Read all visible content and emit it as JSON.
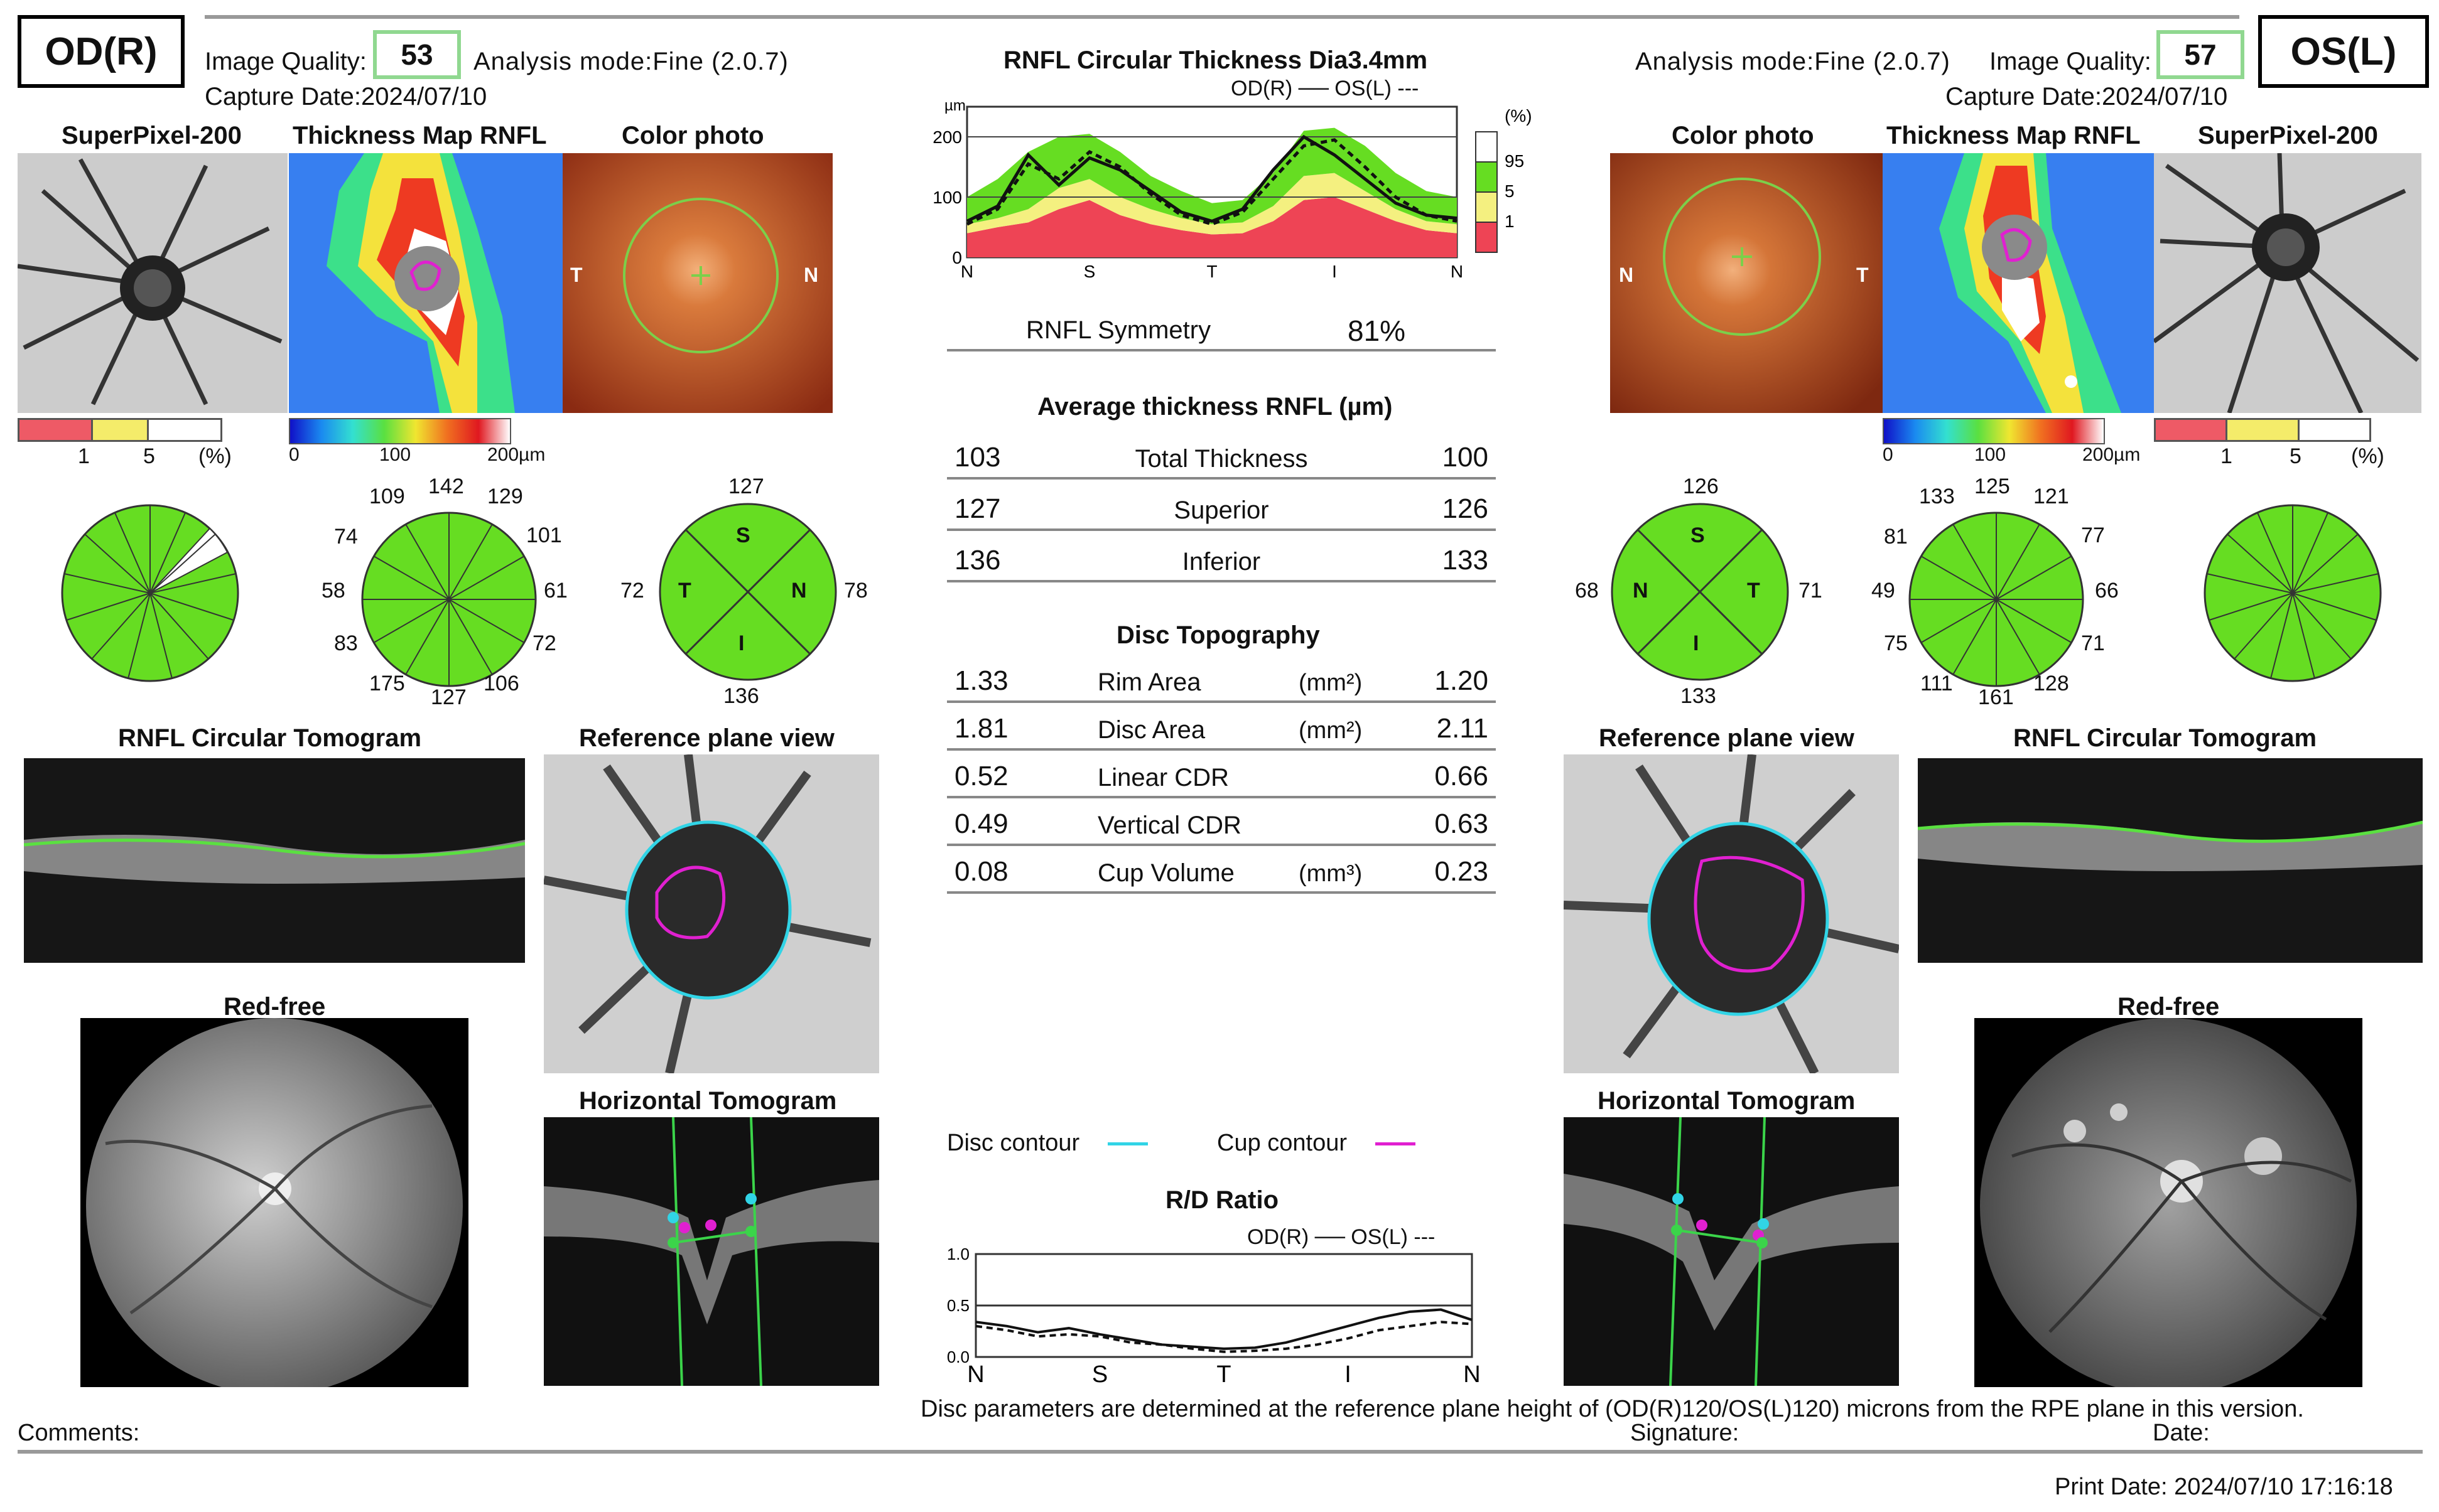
{
  "header": {
    "od_label": "OD(R)",
    "os_label": "OS(L)",
    "image_quality_label": "Image Quality:",
    "od_quality": "53",
    "os_quality": "57",
    "od_analysis_mode": "Analysis mode:Fine (2.0.7)",
    "os_analysis_mode": "Analysis mode:Fine (2.0.7)",
    "od_capture_date": "Capture Date:2024/07/10",
    "os_capture_date": "Capture Date:2024/07/10"
  },
  "od": {
    "superpixel_title": "SuperPixel-200",
    "thickness_map_title": "Thickness Map RNFL",
    "color_photo_title": "Color photo",
    "sp_legend": {
      "l1": "1",
      "l5": "5",
      "pct": "(%)"
    },
    "tm_scale": {
      "s0": "0",
      "s100": "100",
      "s200": "200µm"
    },
    "photo_t": "T",
    "photo_n": "N",
    "clock_hours": [
      "142",
      "129",
      "101",
      "61",
      "72",
      "106",
      "127",
      "175",
      "83",
      "58",
      "74",
      "109"
    ],
    "quadrants": {
      "top": "127",
      "left": "72",
      "right": "78",
      "bottom": "136",
      "s": "S",
      "t": "T",
      "n": "N",
      "i": "I"
    },
    "rnfl_tomogram_title": "RNFL Circular Tomogram",
    "reference_plane_title": "Reference plane view",
    "red_free_title": "Red-free",
    "horizontal_tomogram_title": "Horizontal Tomogram"
  },
  "os": {
    "superpixel_title": "SuperPixel-200",
    "thickness_map_title": "Thickness Map RNFL",
    "color_photo_title": "Color photo",
    "sp_legend": {
      "l1": "1",
      "l5": "5",
      "pct": "(%)"
    },
    "tm_scale": {
      "s0": "0",
      "s100": "100",
      "s200": "200µm"
    },
    "photo_n": "N",
    "photo_t": "T",
    "clock_hours": [
      "125",
      "121",
      "77",
      "66",
      "71",
      "128",
      "161",
      "111",
      "75",
      "49",
      "81",
      "133"
    ],
    "quadrants": {
      "top": "126",
      "left": "68",
      "right": "71",
      "bottom": "133",
      "s": "S",
      "n": "N",
      "t": "T",
      "i": "I"
    },
    "rnfl_tomogram_title": "RNFL Circular Tomogram",
    "reference_plane_title": "Reference plane view",
    "red_free_title": "Red-free",
    "horizontal_tomogram_title": "Horizontal Tomogram"
  },
  "center": {
    "rnfl_chart_title": "RNFL Circular Thickness Dia3.4mm",
    "rnfl_legend": "OD(R) ── OS(L) ‐‐‐",
    "symmetry_label": "RNFL Symmetry",
    "symmetry_value": "81%",
    "avg_title": "Average thickness RNFL (µm)",
    "avg_rows": [
      {
        "od": "103",
        "label": "Total Thickness",
        "os": "100"
      },
      {
        "od": "127",
        "label": "Superior",
        "os": "126"
      },
      {
        "od": "136",
        "label": "Inferior",
        "os": "133"
      }
    ],
    "disc_title": "Disc Topography",
    "disc_rows": [
      {
        "od": "1.33",
        "label": "Rim Area",
        "unit": "(mm²)",
        "os": "1.20"
      },
      {
        "od": "1.81",
        "label": "Disc Area",
        "unit": "(mm²)",
        "os": "2.11"
      },
      {
        "od": "0.52",
        "label": "Linear CDR",
        "unit": "",
        "os": "0.66"
      },
      {
        "od": "0.49",
        "label": "Vertical CDR",
        "unit": "",
        "os": "0.63"
      },
      {
        "od": "0.08",
        "label": "Cup Volume",
        "unit": "(mm³)",
        "os": "0.23"
      }
    ],
    "disc_contour_label": "Disc contour",
    "cup_contour_label": "Cup contour",
    "rd_title": "R/D Ratio",
    "rd_legend": "OD(R) ── OS(L) ‐‐‐"
  },
  "colors": {
    "disc_contour": "#31d4e6",
    "cup_contour": "#e020d0",
    "normal_green": "#66dd22",
    "borderline_yellow": "#f4f080",
    "abnormal_red": "#ee4455",
    "quality_box": "#90d890"
  },
  "chart_data": [
    {
      "type": "area",
      "title": "RNFL Circular Thickness Dia3.4mm",
      "ylabel": "µm",
      "ylim": [
        0,
        250
      ],
      "yticks": [
        "0",
        "100",
        "200"
      ],
      "categories": [
        "N",
        "S",
        "T",
        "I",
        "N"
      ],
      "percentile_legend": [
        "(%)",
        "95",
        "5",
        "1"
      ],
      "x": [
        0,
        4,
        8,
        12,
        16,
        20,
        24,
        28,
        32,
        36,
        40,
        44,
        48,
        52,
        56,
        60,
        64
      ],
      "series": [
        {
          "name": "p1",
          "values": [
            40,
            50,
            58,
            80,
            95,
            70,
            55,
            45,
            38,
            40,
            60,
            95,
            100,
            80,
            60,
            45,
            40
          ]
        },
        {
          "name": "p5",
          "values": [
            55,
            65,
            80,
            115,
            130,
            100,
            80,
            65,
            55,
            58,
            85,
            135,
            140,
            110,
            80,
            60,
            55
          ]
        },
        {
          "name": "p95",
          "values": [
            100,
            130,
            175,
            200,
            205,
            175,
            135,
            110,
            90,
            95,
            140,
            210,
            215,
            185,
            140,
            110,
            100
          ]
        },
        {
          "name": "OD(R)",
          "values": [
            60,
            85,
            170,
            120,
            165,
            145,
            110,
            75,
            60,
            80,
            145,
            200,
            170,
            130,
            90,
            70,
            65
          ]
        },
        {
          "name": "OS(L)",
          "values": [
            55,
            80,
            155,
            130,
            175,
            150,
            105,
            70,
            55,
            75,
            130,
            185,
            195,
            150,
            100,
            70,
            60
          ]
        }
      ]
    },
    {
      "type": "line",
      "title": "R/D Ratio",
      "ylim": [
        0,
        1.0
      ],
      "yticks": [
        "0.0",
        "0.5",
        "1.0"
      ],
      "categories": [
        "N",
        "S",
        "T",
        "I",
        "N"
      ],
      "x": [
        0,
        4,
        8,
        12,
        16,
        20,
        24,
        28,
        32,
        36,
        40,
        44,
        48,
        52,
        56,
        60,
        64
      ],
      "series": [
        {
          "name": "OD(R)",
          "values": [
            0.34,
            0.3,
            0.24,
            0.28,
            0.22,
            0.17,
            0.12,
            0.1,
            0.08,
            0.09,
            0.14,
            0.22,
            0.3,
            0.38,
            0.44,
            0.46,
            0.36
          ]
        },
        {
          "name": "OS(L)",
          "values": [
            0.3,
            0.26,
            0.2,
            0.22,
            0.2,
            0.14,
            0.12,
            0.08,
            0.05,
            0.06,
            0.08,
            0.12,
            0.18,
            0.26,
            0.3,
            0.34,
            0.32
          ]
        }
      ]
    }
  ],
  "footer": {
    "disclaimer": "Disc parameters are determined at the reference plane height of (OD(R)120/OS(L)120) microns from the RPE plane in this version.",
    "comments_label": "Comments:",
    "signature_label": "Signature:",
    "date_label": "Date:",
    "print_date": "Print Date: 2024/07/10 17:16:18"
  }
}
